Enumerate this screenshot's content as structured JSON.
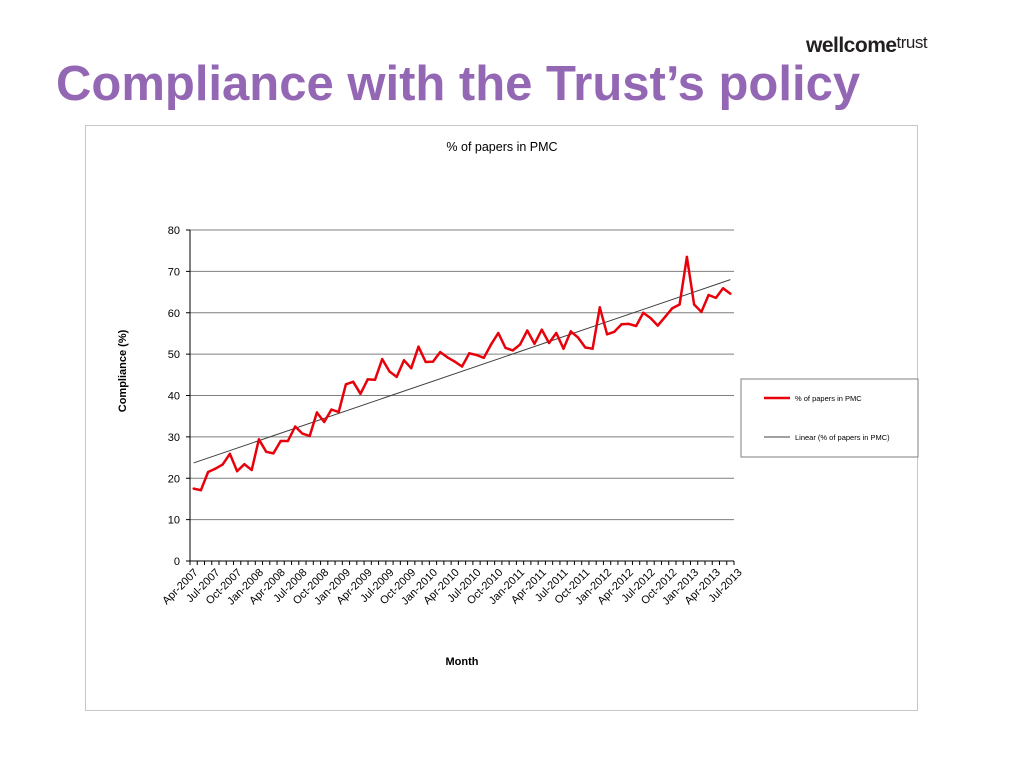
{
  "logo": {
    "bold": "wellcome",
    "light": "trust"
  },
  "page_title": "Compliance with the Trust’s policy",
  "colors": {
    "title": "#9467b4",
    "series": "#e8000b",
    "trend": "#404040",
    "grid": "#7f7f7f"
  },
  "chart_data": {
    "type": "line",
    "title": "% of papers in PMC",
    "xlabel": "Month",
    "ylabel": "Compliance (%)",
    "ylim": [
      0,
      80
    ],
    "yticks": [
      0,
      10,
      20,
      30,
      40,
      50,
      60,
      70,
      80
    ],
    "grid": true,
    "legend_position": "right",
    "x_tick_labels": [
      "Apr-2007",
      "Jul-2007",
      "Oct-2007",
      "Jan-2008",
      "Apr-2008",
      "Jul-2008",
      "Oct-2008",
      "Jan-2009",
      "Apr-2009",
      "Jul-2009",
      "Oct-2009",
      "Jan-2010",
      "Apr-2010",
      "Jul-2010",
      "Oct-2010",
      "Jan-2011",
      "Apr-2011",
      "Jul-2011",
      "Oct-2011",
      "Jan-2012",
      "Apr-2012",
      "Jul-2012",
      "Oct-2012",
      "Jan-2013",
      "Apr-2013",
      "Jul-2013"
    ],
    "series": [
      {
        "name": "% of papers in PMC",
        "values": [
          17.5,
          17.1,
          21.5,
          22.3,
          23.3,
          25.9,
          21.7,
          23.4,
          22.0,
          29.4,
          26.4,
          26.0,
          29.0,
          29.0,
          32.5,
          30.8,
          30.2,
          35.9,
          33.6,
          36.6,
          36.0,
          42.7,
          43.3,
          40.4,
          43.9,
          43.8,
          48.8,
          45.8,
          44.5,
          48.5,
          46.6,
          51.8,
          48.1,
          48.2,
          50.5,
          49.2,
          48.2,
          47.0,
          50.2,
          49.8,
          49.1,
          52.3,
          55.1,
          51.5,
          50.9,
          52.3,
          55.7,
          52.5,
          55.9,
          52.7,
          55.1,
          51.3,
          55.5,
          54.0,
          51.6,
          51.3,
          61.3,
          54.8,
          55.4,
          57.2,
          57.3,
          56.8,
          60.0,
          58.7,
          56.9,
          59.0,
          61.1,
          62.0,
          73.5,
          62.0,
          60.2,
          64.3,
          63.6,
          65.9,
          64.6
        ]
      },
      {
        "name": "Linear (% of papers in PMC)",
        "type": "linear-trend",
        "start": 23.7,
        "end": 68.0
      }
    ]
  }
}
